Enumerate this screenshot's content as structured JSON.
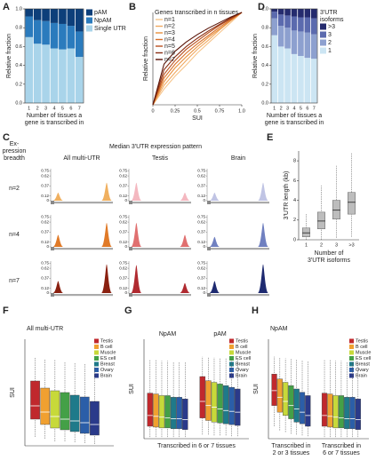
{
  "chart_data": [
    {
      "type": "bar",
      "stacked": true,
      "panel": "A",
      "categories": [
        "1",
        "2",
        "3",
        "4",
        "5",
        "6",
        "7"
      ],
      "series": [
        {
          "name": "Single UTR",
          "color": "#a9d4ea",
          "values": [
            0.7,
            0.63,
            0.62,
            0.58,
            0.57,
            0.58,
            0.49
          ]
        },
        {
          "name": "NpAM",
          "color": "#2b7bbd",
          "values": [
            0.22,
            0.25,
            0.25,
            0.27,
            0.27,
            0.24,
            0.27
          ]
        },
        {
          "name": "pAM",
          "color": "#0d3f7a",
          "values": [
            0.08,
            0.12,
            0.13,
            0.15,
            0.16,
            0.18,
            0.24
          ]
        }
      ],
      "ylabel": "Relative fraction",
      "xlabel": [
        "Number of tissues a",
        "gene is transcribed in"
      ],
      "ylim": [
        0,
        1
      ],
      "yticks": [
        {
          "value": 0,
          "label": "0.0"
        },
        0.2,
        0.4,
        0.6,
        0.8,
        {
          "value": 1,
          "label": "1.0"
        }
      ]
    },
    {
      "type": "line",
      "panel": "B",
      "legend_title": "Genes transcribed in n tissues",
      "xlabel": "SUI",
      "ylabel": "Relative fraction",
      "x": [
        0,
        0.125,
        0.25,
        0.375,
        0.5,
        0.625,
        0.75,
        0.875,
        1
      ],
      "series": [
        {
          "name": "n=1",
          "color": "#f6c48a",
          "values": [
            0,
            0.17,
            0.31,
            0.43,
            0.56,
            0.67,
            0.78,
            0.89,
            1
          ]
        },
        {
          "name": "n=2",
          "color": "#f0a860",
          "values": [
            0,
            0.21,
            0.35,
            0.48,
            0.6,
            0.7,
            0.81,
            0.91,
            1
          ]
        },
        {
          "name": "n=3",
          "color": "#e8903c",
          "values": [
            0,
            0.25,
            0.4,
            0.52,
            0.63,
            0.73,
            0.82,
            0.91,
            1
          ]
        },
        {
          "name": "n=4",
          "color": "#d8702a",
          "values": [
            0,
            0.29,
            0.44,
            0.56,
            0.66,
            0.75,
            0.84,
            0.92,
            1
          ]
        },
        {
          "name": "n=5",
          "color": "#b8501e",
          "values": [
            0,
            0.33,
            0.48,
            0.6,
            0.69,
            0.78,
            0.86,
            0.93,
            1
          ]
        },
        {
          "name": "n=6",
          "color": "#8a2f14",
          "values": [
            0,
            0.38,
            0.52,
            0.63,
            0.72,
            0.8,
            0.87,
            0.94,
            1
          ]
        },
        {
          "name": "n=7",
          "color": "#5a1408",
          "values": [
            0,
            0.44,
            0.58,
            0.68,
            0.76,
            0.83,
            0.89,
            0.95,
            1
          ]
        }
      ],
      "xlim": [
        0,
        1
      ],
      "xticks": [
        0,
        0.25,
        0.5,
        0.75,
        {
          "value": 1,
          "label": "1.0"
        }
      ],
      "ylim": [
        0,
        1
      ]
    },
    {
      "type": "peak",
      "panel": "C",
      "title": "Median 3'UTR expression pattern",
      "breadth_label": [
        "Ex-",
        "pression",
        "breadth"
      ],
      "columns": [
        "All multi-UTR",
        "Testis",
        "Brain"
      ],
      "ylim": [
        0,
        0.8
      ],
      "yticks": [
        0,
        0.12,
        0.37,
        0.62,
        0.75
      ],
      "rows": [
        {
          "name": "n=2",
          "cells": [
            {
              "color": "#f0b060",
              "values": [
                0.2,
                0.45
              ]
            },
            {
              "color": "#f4b8c0",
              "values": [
                0.45,
                0.2
              ]
            },
            {
              "color": "#c0c4e4",
              "values": [
                0.2,
                0.45
              ]
            }
          ]
        },
        {
          "name": "n=4",
          "cells": [
            {
              "color": "#e07a28",
              "values": [
                0.3,
                0.6
              ]
            },
            {
              "color": "#e07070",
              "values": [
                0.6,
                0.3
              ]
            },
            {
              "color": "#7080c0",
              "values": [
                0.25,
                0.6
              ]
            }
          ]
        },
        {
          "name": "n=7",
          "cells": [
            {
              "color": "#8a2010",
              "values": [
                0.3,
                0.72
              ]
            },
            {
              "color": "#b02a30",
              "values": [
                0.7,
                0.25
              ]
            },
            {
              "color": "#1e2a70",
              "values": [
                0.3,
                0.72
              ]
            }
          ]
        }
      ]
    },
    {
      "type": "bar",
      "stacked": true,
      "panel": "D",
      "categories": [
        "1",
        "2",
        "3",
        "4",
        "5",
        "6",
        "7"
      ],
      "legend_title": [
        "3'UTR",
        "isoforms"
      ],
      "series": [
        {
          "name": "1",
          "color": "#cce5f3",
          "values": [
            0.72,
            0.6,
            0.58,
            0.52,
            0.5,
            0.48,
            0.47
          ]
        },
        {
          "name": "2",
          "color": "#8da0cf",
          "values": [
            0.18,
            0.22,
            0.22,
            0.25,
            0.26,
            0.27,
            0.26
          ]
        },
        {
          "name": "3",
          "color": "#5b6aae",
          "values": [
            0.07,
            0.12,
            0.13,
            0.15,
            0.15,
            0.16,
            0.17
          ]
        },
        {
          "name": ">3",
          "color": "#252b6e",
          "values": [
            0.03,
            0.06,
            0.07,
            0.08,
            0.09,
            0.09,
            0.1
          ]
        }
      ],
      "ylabel": "Relative fraction",
      "xlabel": [
        "Number of tissues a",
        "gene is transcribed in"
      ],
      "ylim": [
        0,
        1
      ],
      "yticks": [
        {
          "value": 0,
          "label": "0.0"
        },
        0.2,
        0.4,
        0.6,
        0.8,
        {
          "value": 1,
          "label": "1.0"
        }
      ]
    },
    {
      "type": "box",
      "panel": "E",
      "categories": [
        "1",
        "2",
        "3",
        ">3"
      ],
      "color": "#bdbdbd",
      "median_color": "#222",
      "boxes": [
        [
          0,
          0.3,
          0.7,
          1.2,
          2.6
        ],
        [
          0,
          1.1,
          1.9,
          2.8,
          5.5
        ],
        [
          0.2,
          2.1,
          3.0,
          4.0,
          7.5
        ],
        [
          0.3,
          2.6,
          3.8,
          4.8,
          8.8
        ]
      ],
      "ylabel": "3'UTR length (kb)",
      "xlabel": [
        "Number of",
        "3'UTR isoforms"
      ],
      "ylim": [
        0,
        9
      ],
      "yticks": [
        0,
        2,
        4,
        6,
        8
      ]
    },
    {
      "type": "box",
      "panel": "F",
      "title": "All multi-UTR",
      "ylabel": "SUI",
      "median_color": "#fff",
      "ylim": [
        0,
        1.2
      ],
      "series": [
        {
          "name": "Testis",
          "color": "#c0282d"
        },
        {
          "name": "B cell",
          "color": "#f0a030"
        },
        {
          "name": "Muscle",
          "color": "#c7d93a"
        },
        {
          "name": "ES cell",
          "color": "#44a047"
        },
        {
          "name": "Breast",
          "color": "#1f7a8a"
        },
        {
          "name": "Ovary",
          "color": "#2b5ea8"
        },
        {
          "name": "Brain",
          "color": "#2a3a8a"
        }
      ],
      "groups": [
        {
          "boxes": [
            [
              0.1,
              0.3,
              0.45,
              0.73,
              1.0
            ],
            [
              0.08,
              0.24,
              0.38,
              0.65,
              0.98
            ],
            [
              0.05,
              0.2,
              0.33,
              0.62,
              0.97
            ],
            [
              0.05,
              0.18,
              0.3,
              0.6,
              0.95
            ],
            [
              0.04,
              0.16,
              0.28,
              0.57,
              0.94
            ],
            [
              0.03,
              0.14,
              0.26,
              0.55,
              0.92
            ],
            [
              0.02,
              0.12,
              0.24,
              0.5,
              0.9
            ]
          ]
        }
      ]
    },
    {
      "type": "box",
      "panel": "G",
      "xlabel": "Transcribed in 6 or 7 tissues",
      "ylabel": "SUI",
      "median_color": "#fff",
      "ylim": [
        0,
        1.2
      ],
      "series": [
        {
          "name": "Testis",
          "color": "#c0282d"
        },
        {
          "name": "B cell",
          "color": "#f0a030"
        },
        {
          "name": "Muscle",
          "color": "#c7d93a"
        },
        {
          "name": "ES cell",
          "color": "#44a047"
        },
        {
          "name": "Breast",
          "color": "#1f7a8a"
        },
        {
          "name": "Ovary",
          "color": "#2b5ea8"
        },
        {
          "name": "Brain",
          "color": "#2a3a8a"
        }
      ],
      "groups": [
        {
          "name": "NpAM",
          "boxes": [
            [
              0.02,
              0.15,
              0.28,
              0.55,
              0.95
            ],
            [
              0.02,
              0.14,
              0.27,
              0.54,
              0.95
            ],
            [
              0.02,
              0.13,
              0.26,
              0.52,
              0.94
            ],
            [
              0.02,
              0.13,
              0.25,
              0.52,
              0.94
            ],
            [
              0.02,
              0.12,
              0.24,
              0.5,
              0.93
            ],
            [
              0.02,
              0.12,
              0.24,
              0.5,
              0.93
            ],
            [
              0.02,
              0.11,
              0.23,
              0.48,
              0.92
            ]
          ]
        },
        {
          "name": "pAM",
          "boxes": [
            [
              0.05,
              0.25,
              0.45,
              0.75,
              0.99
            ],
            [
              0.05,
              0.22,
              0.4,
              0.7,
              0.98
            ],
            [
              0.04,
              0.2,
              0.38,
              0.68,
              0.98
            ],
            [
              0.04,
              0.19,
              0.36,
              0.66,
              0.97
            ],
            [
              0.04,
              0.18,
              0.34,
              0.64,
              0.97
            ],
            [
              0.03,
              0.17,
              0.33,
              0.62,
              0.96
            ],
            [
              0.03,
              0.16,
              0.32,
              0.6,
              0.96
            ]
          ]
        }
      ]
    },
    {
      "type": "box",
      "panel": "H",
      "title": "NpAM",
      "ylabel": "SUI",
      "median_color": "#fff",
      "ylim": [
        0,
        1.2
      ],
      "series": [
        {
          "name": "Testis",
          "color": "#c0282d"
        },
        {
          "name": "B cell",
          "color": "#f0a030"
        },
        {
          "name": "Muscle",
          "color": "#c7d93a"
        },
        {
          "name": "ES cell",
          "color": "#44a047"
        },
        {
          "name": "Breast",
          "color": "#1f7a8a"
        },
        {
          "name": "Ovary",
          "color": "#2b5ea8"
        },
        {
          "name": "Brain",
          "color": "#2a3a8a"
        }
      ],
      "groups": [
        {
          "label": [
            "Transcribed in",
            "2 or 3 tissues"
          ],
          "boxes": [
            [
              0.15,
              0.4,
              0.58,
              0.78,
              0.99
            ],
            [
              0.1,
              0.32,
              0.5,
              0.72,
              0.98
            ],
            [
              0.08,
              0.28,
              0.45,
              0.68,
              0.97
            ],
            [
              0.06,
              0.24,
              0.4,
              0.64,
              0.96
            ],
            [
              0.05,
              0.2,
              0.36,
              0.6,
              0.95
            ],
            [
              0.04,
              0.18,
              0.32,
              0.56,
              0.94
            ],
            [
              0.03,
              0.15,
              0.28,
              0.52,
              0.93
            ]
          ]
        },
        {
          "label": [
            "Transcribed in",
            "6 or 7 tissues"
          ],
          "boxes": [
            [
              0.02,
              0.15,
              0.28,
              0.55,
              0.95
            ],
            [
              0.02,
              0.14,
              0.27,
              0.54,
              0.95
            ],
            [
              0.02,
              0.13,
              0.26,
              0.52,
              0.94
            ],
            [
              0.02,
              0.13,
              0.25,
              0.52,
              0.94
            ],
            [
              0.02,
              0.12,
              0.24,
              0.5,
              0.93
            ],
            [
              0.02,
              0.12,
              0.24,
              0.5,
              0.93
            ],
            [
              0.02,
              0.11,
              0.23,
              0.48,
              0.92
            ]
          ]
        }
      ]
    }
  ]
}
